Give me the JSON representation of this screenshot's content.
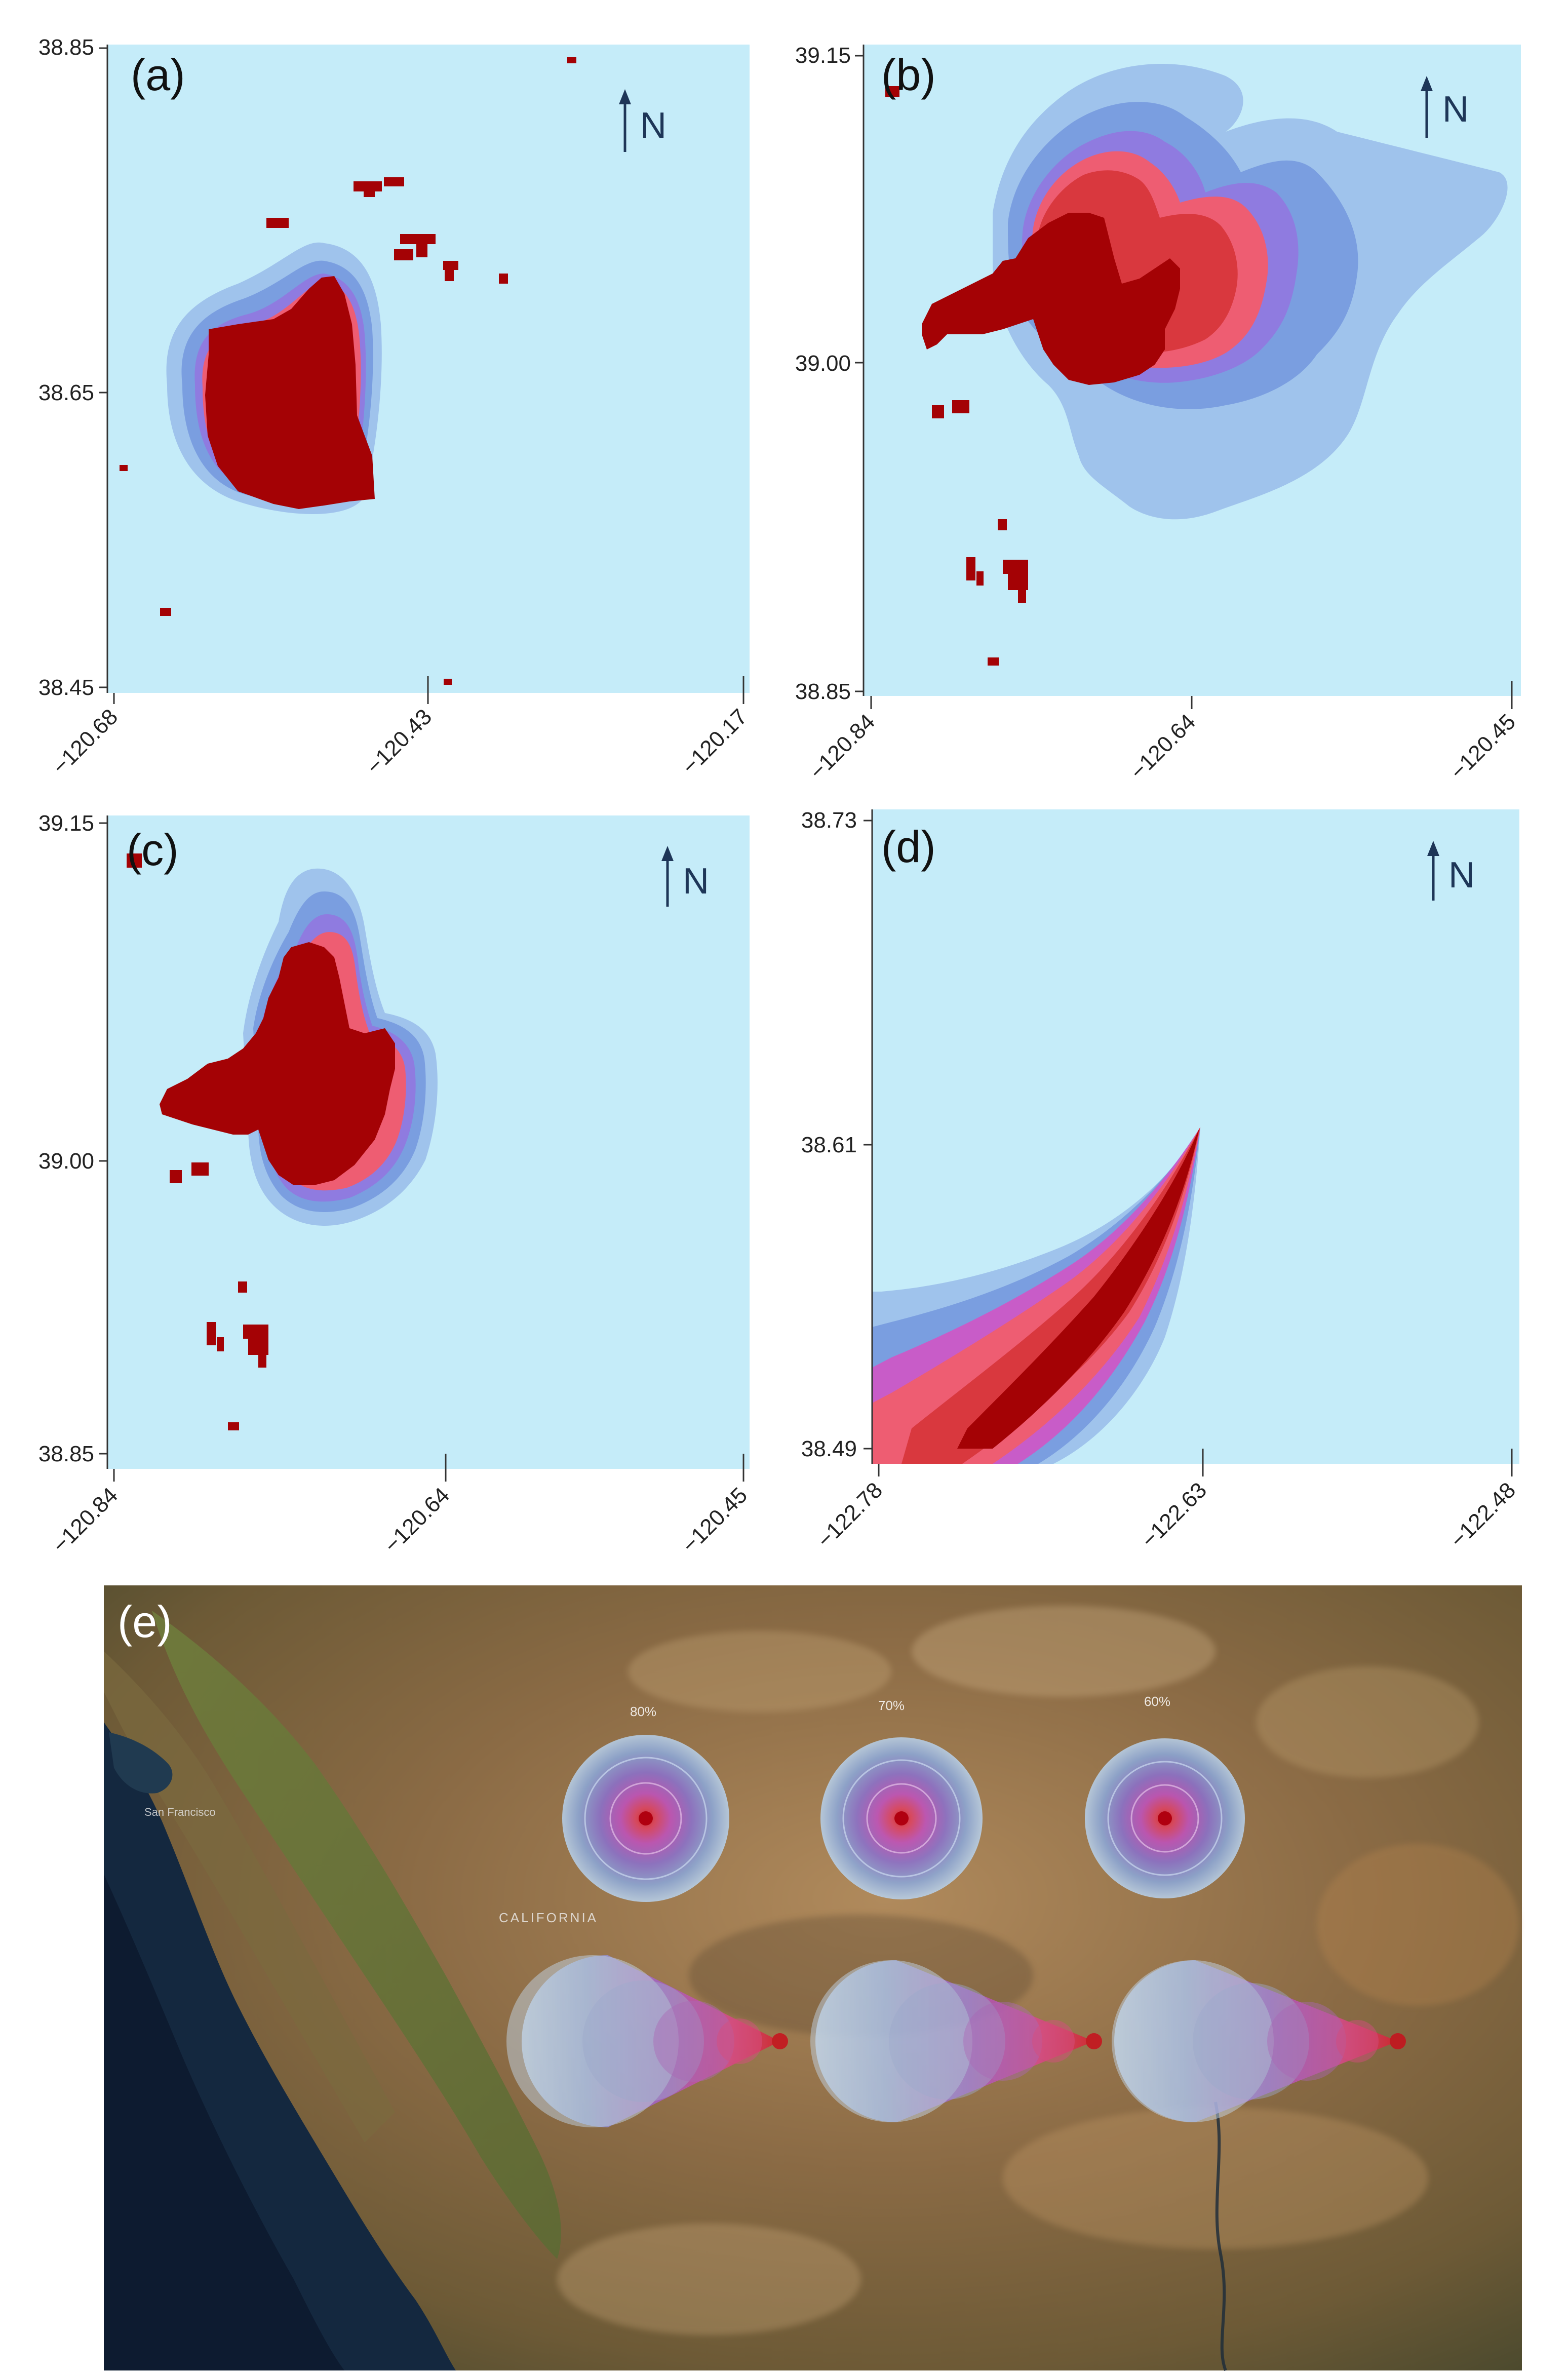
{
  "north_label": "N",
  "panels": [
    {
      "id": "a",
      "label": "(a)",
      "lat_ticks": [
        "38.85",
        "38.65",
        "38.45"
      ],
      "lon_ticks": [
        "−120.68",
        "−120.43",
        "−120.17"
      ]
    },
    {
      "id": "b",
      "label": "(b)",
      "lat_ticks": [
        "39.15",
        "39.00",
        "38.85"
      ],
      "lon_ticks": [
        "−120.84",
        "−120.64",
        "−120.45"
      ]
    },
    {
      "id": "c",
      "label": "(c)",
      "lat_ticks": [
        "39.15",
        "39.00",
        "38.85"
      ],
      "lon_ticks": [
        "−120.84",
        "−120.64",
        "−120.45"
      ]
    },
    {
      "id": "d",
      "label": "(d)",
      "lat_ticks": [
        "38.73",
        "38.61",
        "38.49"
      ],
      "lon_ticks": [
        "−122.78",
        "−122.63",
        "−122.48"
      ]
    }
  ],
  "satellite": {
    "label": "(e)",
    "circle_labels": [
      "80%",
      "70%",
      "60%"
    ],
    "place_labels": [
      "San Francisco",
      "CALIFORNIA"
    ]
  },
  "colors": {
    "background": "#c5ecf9",
    "burn_core": "#a40205",
    "burn_red": "#d9383e",
    "burn_pink": "#ee5d72",
    "burn_magenta": "#c85cc8",
    "burn_violet": "#8f7be0",
    "smoke_blue": "#7a9ee0",
    "smoke_light": "#9fc3ec"
  }
}
